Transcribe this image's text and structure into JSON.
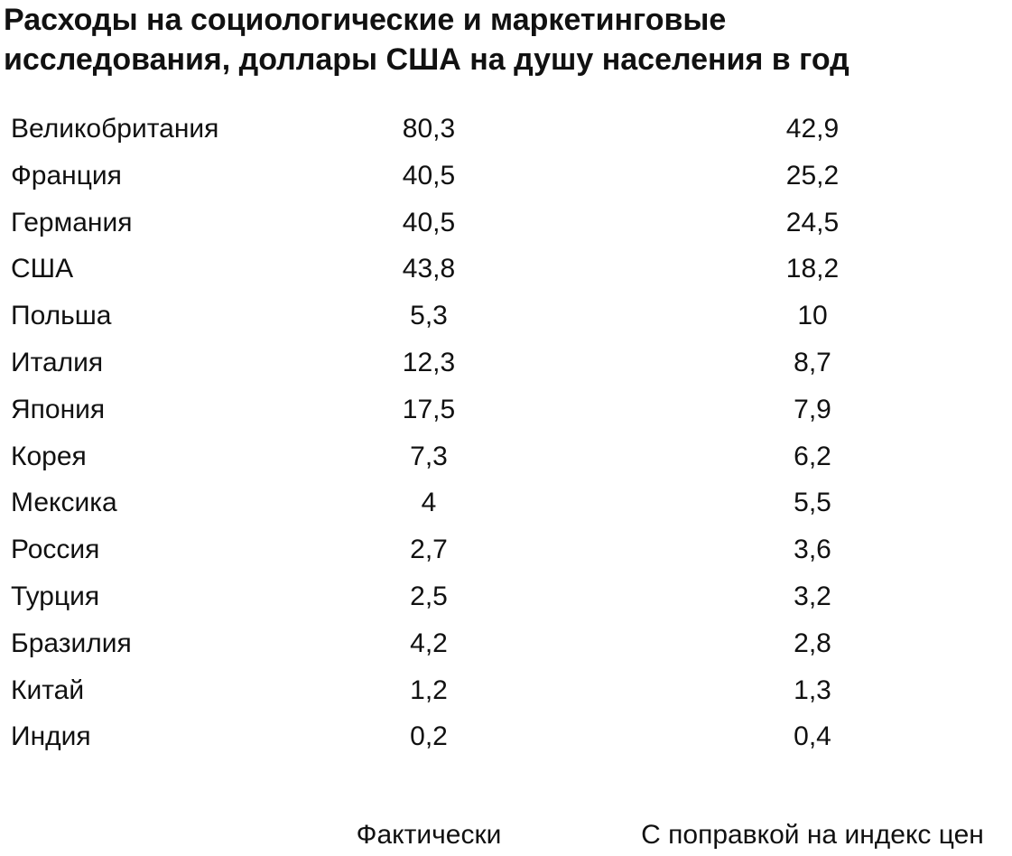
{
  "title_lines": [
    "Расходы на социологические и маркетинговые",
    "исследования, доллары США на душу населения в год"
  ],
  "table": {
    "rows": [
      [
        "Великобритания",
        "80,3",
        "42,9"
      ],
      [
        "Франция",
        "40,5",
        "25,2"
      ],
      [
        "Германия",
        "40,5",
        "24,5"
      ],
      [
        "США",
        "43,8",
        "18,2"
      ],
      [
        "Польша",
        "5,3",
        "10"
      ],
      [
        "Италия",
        "12,3",
        "8,7"
      ],
      [
        "Япония",
        "17,5",
        "7,9"
      ],
      [
        "Корея",
        "7,3",
        "6,2"
      ],
      [
        "Мексика",
        "4",
        "5,5"
      ],
      [
        "Россия",
        "2,7",
        "3,6"
      ],
      [
        "Турция",
        "2,5",
        "3,2"
      ],
      [
        "Бразилия",
        "4,2",
        "2,8"
      ],
      [
        "Китай",
        "1,2",
        "1,3"
      ],
      [
        "Индия",
        "0,2",
        "0,4"
      ]
    ],
    "column_labels": [
      "Фактически",
      "С поправкой на индекс цен"
    ]
  }
}
